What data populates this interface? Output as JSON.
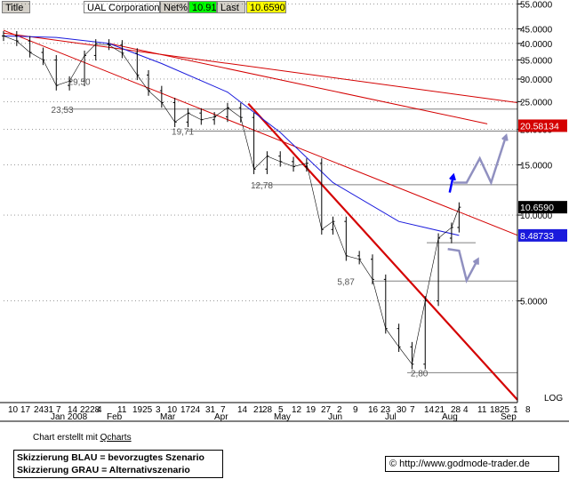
{
  "header": {
    "title_label": "Title",
    "symbol": "UAL Corporation",
    "net_label": "Net%",
    "net_value": "10.91",
    "last_label": "Last",
    "last_value": "10.6590"
  },
  "chart_data": {
    "type": "line",
    "title": "UAL Corporation",
    "yscale": "log",
    "ylim": [
      2.2,
      56
    ],
    "xlim": [
      "2007-12-10",
      "2008-09-08"
    ],
    "y_tick_labels": [
      "55.0000",
      "45.0000",
      "40.0000",
      "35.0000",
      "30.0000",
      "25.0000",
      "20.0000",
      "15.0000",
      "10.0000",
      "5.0000",
      "LOG"
    ],
    "y_ticks": [
      55,
      45,
      40,
      35,
      30,
      25,
      20,
      15,
      10,
      5
    ],
    "x_day_labels": [
      "10",
      "17",
      "2431",
      "7",
      "14",
      "2228",
      "4",
      "11",
      "1925",
      "3",
      "10",
      "1724",
      "31",
      "7",
      "14",
      "21",
      "28",
      "5",
      "12",
      "19",
      "27",
      "2",
      "9",
      "16",
      "23",
      "30",
      "7",
      "14",
      "21",
      "28",
      "4",
      "11",
      "18",
      "25",
      "1",
      "8"
    ],
    "x_month_labels": [
      "Jan 2008",
      "Feb",
      "Mar",
      "Apr",
      "May",
      "Jun",
      "Jul",
      "Aug",
      "Sep"
    ],
    "price_series": {
      "name": "UAL",
      "dates": [
        "2007-12-10",
        "2007-12-17",
        "2007-12-24",
        "2007-12-31",
        "2008-01-07",
        "2008-01-14",
        "2008-01-22",
        "2008-01-28",
        "2008-02-04",
        "2008-02-11",
        "2008-02-19",
        "2008-02-25",
        "2008-03-03",
        "2008-03-10",
        "2008-03-17",
        "2008-03-24",
        "2008-03-31",
        "2008-04-07",
        "2008-04-14",
        "2008-04-21",
        "2008-04-28",
        "2008-05-05",
        "2008-05-12",
        "2008-05-19",
        "2008-05-27",
        "2008-06-02",
        "2008-06-09",
        "2008-06-16",
        "2008-06-23",
        "2008-06-30",
        "2008-07-07",
        "2008-07-14",
        "2008-07-21",
        "2008-07-28",
        "2008-08-04",
        "2008-08-08"
      ],
      "close": [
        42.5,
        40.8,
        37.2,
        35.0,
        28.5,
        29.5,
        36.3,
        39.8,
        39.5,
        37.0,
        31.0,
        27.3,
        24.8,
        21.2,
        22.8,
        21.6,
        22.1,
        23.8,
        22.0,
        14.5,
        16.1,
        15.4,
        14.8,
        15.2,
        8.9,
        9.5,
        7.2,
        7.0,
        5.95,
        4.0,
        3.45,
        3.0,
        5.0,
        8.3,
        9.05,
        10.659
      ]
    },
    "ma_series": {
      "name": "Moving average",
      "dates": [
        "2007-12-10",
        "2008-01-07",
        "2008-02-04",
        "2008-03-03",
        "2008-04-07",
        "2008-05-05",
        "2008-06-02",
        "2008-07-07",
        "2008-08-08"
      ],
      "values": [
        42.5,
        42.0,
        40.0,
        34.0,
        27.0,
        19.5,
        13.0,
        9.5,
        8.48733
      ]
    },
    "price_labels": [
      {
        "date": "2008-01-09",
        "value": "23,53"
      },
      {
        "date": "2008-01-18",
        "value": "29,50"
      },
      {
        "date": "2008-03-13",
        "value": "19,71"
      },
      {
        "date": "2008-04-24",
        "value": "12,78"
      },
      {
        "date": "2008-06-09",
        "value": "5,87"
      },
      {
        "date": "2008-07-18",
        "value": "2,80"
      }
    ],
    "horizontal_levels": [
      {
        "value": 23.53
      },
      {
        "value": 19.71
      },
      {
        "value": 12.78
      },
      {
        "value": 5.87
      },
      {
        "value": 2.8
      },
      {
        "value": 8.0
      }
    ],
    "trendlines": [
      {
        "kind": "thin",
        "from": [
          "2007-12-10",
          43.5
        ],
        "to": [
          "2008-09-08",
          24.8
        ]
      },
      {
        "kind": "thin",
        "from": [
          "2008-02-04",
          40.0
        ],
        "to": [
          "2008-08-23",
          20.9
        ]
      },
      {
        "kind": "thin",
        "from": [
          "2007-12-10",
          44.5
        ],
        "to": [
          "2008-09-08",
          8.5
        ]
      },
      {
        "kind": "thick",
        "from": [
          "2008-04-18",
          24.6
        ],
        "to": [
          "2008-09-08",
          2.25
        ]
      }
    ],
    "right_badges": [
      {
        "value": "20.58134",
        "bg": "#d40000",
        "fg": "#ffffff"
      },
      {
        "value": "10.6590",
        "bg": "#000000",
        "fg": "#ffffff"
      },
      {
        "value": "8.48733",
        "bg": "#1a1adc",
        "fg": "#ffffff"
      }
    ],
    "scenario_blue": [
      [
        "2008-08-03",
        12.0
      ],
      [
        "2008-08-05",
        13.8
      ]
    ],
    "scenario_gray": [
      [
        [
          "2008-08-05",
          13.0
        ],
        [
          "2008-08-12",
          13.0
        ],
        [
          "2008-08-19",
          15.8
        ],
        [
          "2008-08-25",
          13.0
        ],
        [
          "2008-09-02",
          19.0
        ]
      ],
      [
        [
          "2008-08-02",
          7.6
        ],
        [
          "2008-08-08",
          7.5
        ],
        [
          "2008-08-12",
          5.9
        ],
        [
          "2008-08-18",
          7.0
        ]
      ]
    ],
    "colors": {
      "price": "#000000",
      "ma": "#1a1adc",
      "trend": "#d40000",
      "gray_scenario": "#9090c0",
      "blue_scenario": "#0000ff",
      "grid": "#000000"
    }
  },
  "footer": {
    "credit_text": "Chart erstellt mit ",
    "credit_link": "Qcharts",
    "legend_line1": "Skizzierung BLAU = bevorzugtes Szenario",
    "legend_line2": "Skizzierung GRAU = Alternativszenario",
    "copyright": "© http://www.godmode-trader.de"
  }
}
